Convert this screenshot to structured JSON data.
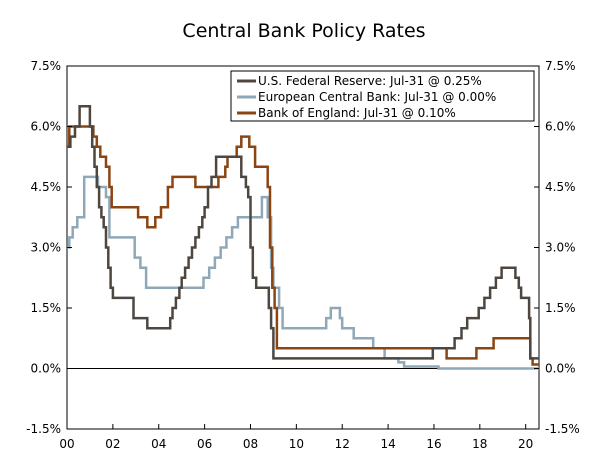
{
  "chart_data": {
    "type": "line",
    "title": "Central Bank Policy Rates",
    "xlabel": "",
    "ylabel": "",
    "xlim": [
      2000.0,
      2020.58
    ],
    "ylim": [
      -1.5,
      7.5
    ],
    "y_ticks": [
      -1.5,
      0.0,
      1.5,
      3.0,
      4.5,
      6.0,
      7.5
    ],
    "y_tick_labels": [
      "-1.5%",
      "0.0%",
      "1.5%",
      "3.0%",
      "4.5%",
      "6.0%",
      "7.5%"
    ],
    "x_ticks": [
      2000,
      2002,
      2004,
      2006,
      2008,
      2010,
      2012,
      2014,
      2016,
      2018,
      2020
    ],
    "x_tick_labels": [
      "00",
      "02",
      "04",
      "06",
      "08",
      "10",
      "12",
      "14",
      "16",
      "18",
      "20"
    ],
    "grid": false,
    "legend_position": "top-right",
    "series": [
      {
        "name": "U.S. Federal Reserve: Jul-31 @ 0.25%",
        "color": "#4d4740",
        "x": [
          2000.0,
          2000.15,
          2000.35,
          2000.55,
          2001.0,
          2001.1,
          2001.2,
          2001.3,
          2001.4,
          2001.5,
          2001.6,
          2001.7,
          2001.8,
          2001.9,
          2002.0,
          2002.9,
          2003.5,
          2004.5,
          2004.6,
          2004.75,
          2004.9,
          2005.0,
          2005.15,
          2005.3,
          2005.45,
          2005.6,
          2005.75,
          2005.9,
          2006.0,
          2006.15,
          2006.3,
          2006.5,
          2007.6,
          2007.8,
          2007.9,
          2008.0,
          2008.1,
          2008.25,
          2008.8,
          2008.9,
          2009.0,
          2015.95,
          2016.9,
          2017.2,
          2017.45,
          2017.95,
          2018.2,
          2018.45,
          2018.7,
          2018.95,
          2019.55,
          2019.7,
          2019.8,
          2020.15,
          2020.2,
          2020.58
        ],
        "y": [
          5.5,
          5.75,
          6.0,
          6.5,
          6.0,
          5.5,
          5.0,
          4.5,
          4.0,
          3.75,
          3.5,
          3.0,
          2.5,
          2.0,
          1.75,
          1.25,
          1.0,
          1.25,
          1.5,
          1.75,
          2.0,
          2.25,
          2.5,
          2.75,
          3.0,
          3.25,
          3.5,
          3.75,
          4.0,
          4.5,
          4.75,
          5.25,
          4.75,
          4.5,
          4.25,
          3.0,
          2.25,
          2.0,
          1.5,
          1.0,
          0.25,
          0.5,
          0.75,
          1.0,
          1.25,
          1.5,
          1.75,
          2.0,
          2.25,
          2.5,
          2.25,
          2.0,
          1.75,
          1.25,
          0.25,
          0.25
        ]
      },
      {
        "name": "European Central Bank: Jul-31 @ 0.00%",
        "color": "#8fa8b8",
        "x": [
          2000.0,
          2000.1,
          2000.25,
          2000.45,
          2000.75,
          2001.35,
          2001.7,
          2001.85,
          2002.95,
          2003.2,
          2003.45,
          2005.95,
          2006.2,
          2006.45,
          2006.7,
          2006.95,
          2007.2,
          2007.45,
          2008.5,
          2008.75,
          2008.9,
          2009.0,
          2009.25,
          2009.4,
          2011.3,
          2011.5,
          2011.9,
          2012.0,
          2012.5,
          2013.35,
          2013.85,
          2014.45,
          2014.7,
          2016.2,
          2020.58
        ],
        "y": [
          3.0,
          3.25,
          3.5,
          3.75,
          4.75,
          4.5,
          4.25,
          3.25,
          2.75,
          2.5,
          2.0,
          2.25,
          2.5,
          2.75,
          3.0,
          3.25,
          3.5,
          3.75,
          4.25,
          3.75,
          2.5,
          2.0,
          1.5,
          1.0,
          1.25,
          1.5,
          1.25,
          1.0,
          0.75,
          0.5,
          0.25,
          0.15,
          0.05,
          0.0,
          0.0
        ]
      },
      {
        "name": "Bank of England: Jul-31 @ 0.10%",
        "color": "#8b4513",
        "x": [
          2000.0,
          2000.1,
          2001.15,
          2001.3,
          2001.45,
          2001.7,
          2001.85,
          2001.95,
          2003.1,
          2003.5,
          2003.85,
          2004.1,
          2004.4,
          2004.6,
          2005.6,
          2006.6,
          2006.9,
          2007.0,
          2007.4,
          2007.6,
          2007.95,
          2008.2,
          2008.75,
          2008.85,
          2008.95,
          2009.05,
          2009.15,
          2016.55,
          2017.85,
          2018.6,
          2020.2,
          2020.3,
          2020.58
        ],
        "y": [
          5.5,
          6.0,
          5.75,
          5.5,
          5.25,
          5.0,
          4.5,
          4.0,
          3.75,
          3.5,
          3.75,
          4.0,
          4.5,
          4.75,
          4.5,
          4.75,
          5.0,
          5.25,
          5.5,
          5.75,
          5.5,
          5.0,
          4.5,
          3.0,
          2.0,
          1.5,
          0.5,
          0.25,
          0.5,
          0.75,
          0.25,
          0.1,
          0.1
        ]
      }
    ]
  }
}
